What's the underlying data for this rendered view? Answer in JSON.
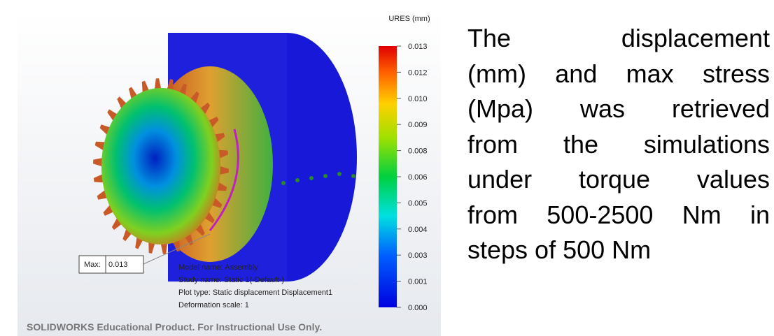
{
  "legend": {
    "title": "URES (mm)",
    "ticks": [
      "0.013",
      "0.012",
      "0.010",
      "0.009",
      "0.008",
      "0.006",
      "0.005",
      "0.004",
      "0.003",
      "0.001",
      "0.000"
    ]
  },
  "max_label": {
    "label": "Max:",
    "value": "0.013"
  },
  "info": [
    "Model name: Assembly",
    "Study name: Static 1(-Default-)",
    "Plot type: Static displacement Displacement1",
    "Deformation scale: 1"
  ],
  "watermark": "SOLIDWORKS Educational Product. For Instructional Use Only.",
  "text_lines": [
    "The displacement",
    "(mm) and max stress",
    "(Mpa) was retrieved",
    "from the simulations",
    "under torque values",
    "from 500-2500 Nm in",
    "steps of 500 Nm"
  ]
}
